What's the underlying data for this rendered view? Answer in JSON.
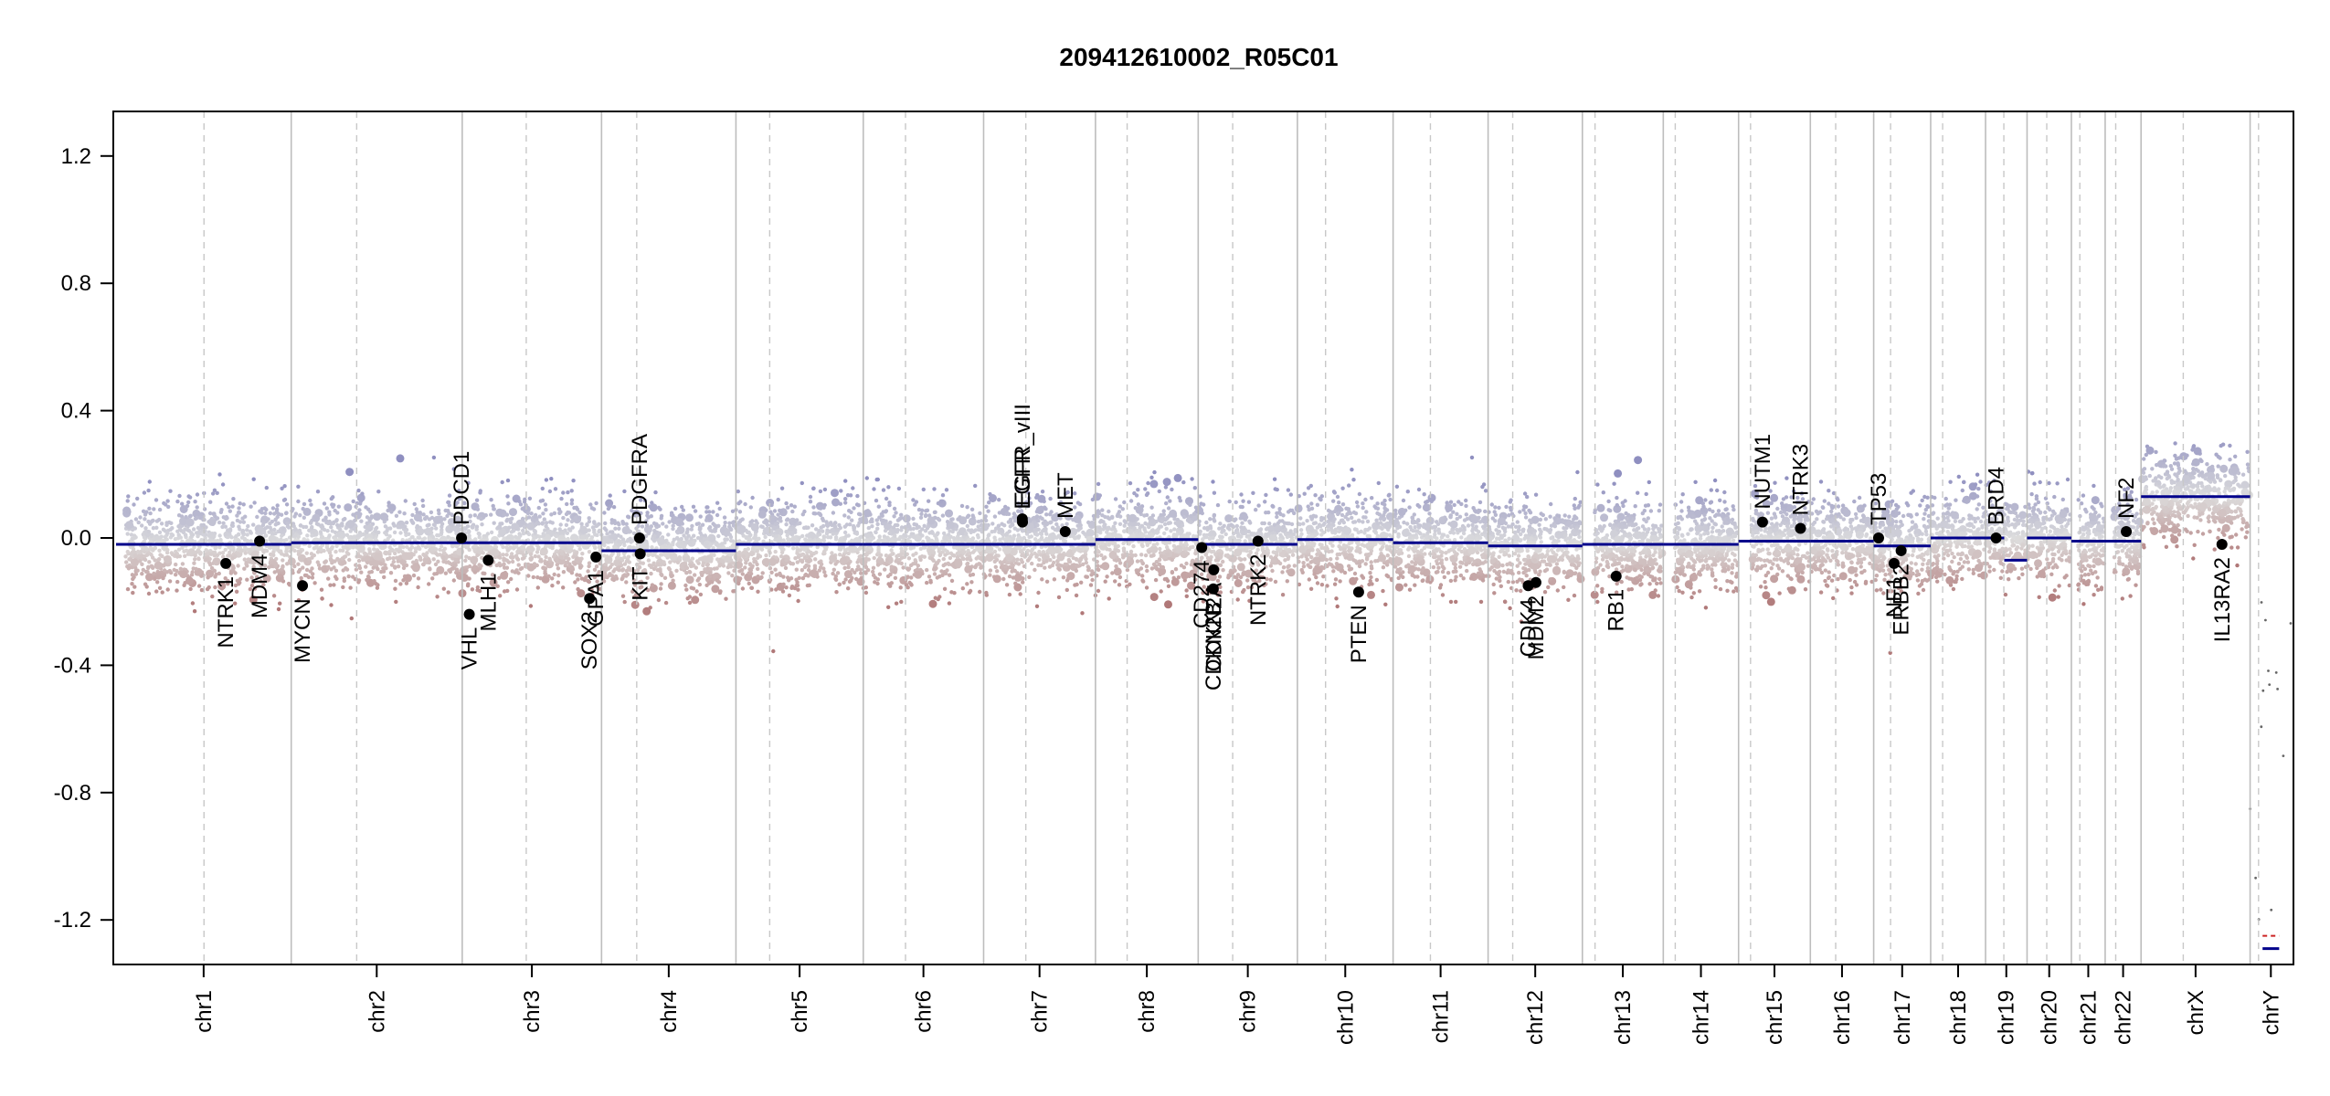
{
  "chart_data": {
    "type": "scatter",
    "title": "209412610002_R05C01",
    "xlabel": "",
    "ylabel": "",
    "ylim": [
      -1.34,
      1.34
    ],
    "yticks": [
      -1.2,
      -0.8,
      -0.4,
      0.0,
      0.4,
      0.8,
      1.2
    ],
    "ytick_labels": [
      "-1.2",
      "-0.8",
      "-0.4",
      "0.0",
      "0.4",
      "0.8",
      "1.2"
    ],
    "grid": false,
    "colors": {
      "gain": "#8f8fc0",
      "neutral": "#d9d9d9",
      "loss": "#b07878",
      "segment": "#00008b",
      "segment_y_outlier": "#cc2222"
    },
    "chromosomes": [
      {
        "name": "chr1",
        "length": 249,
        "centromere": 125,
        "cov_start": 0.05,
        "segments": [
          {
            "from": 0,
            "to": 1,
            "value": -0.02
          }
        ]
      },
      {
        "name": "chr2",
        "length": 243,
        "centromere": 93,
        "cov_start": 0.0,
        "segments": [
          {
            "from": 0,
            "to": 1,
            "value": -0.015
          }
        ]
      },
      {
        "name": "chr3",
        "length": 198,
        "centromere": 91,
        "cov_start": 0.0,
        "segments": [
          {
            "from": 0,
            "to": 1,
            "value": -0.015
          }
        ]
      },
      {
        "name": "chr4",
        "length": 191,
        "centromere": 50,
        "cov_start": 0.0,
        "segments": [
          {
            "from": 0,
            "to": 1,
            "value": -0.04
          }
        ]
      },
      {
        "name": "chr5",
        "length": 181,
        "centromere": 48,
        "cov_start": 0.0,
        "segments": [
          {
            "from": 0,
            "to": 1,
            "value": -0.02
          }
        ]
      },
      {
        "name": "chr6",
        "length": 171,
        "centromere": 60,
        "cov_start": 0.0,
        "segments": [
          {
            "from": 0,
            "to": 1,
            "value": -0.02
          }
        ]
      },
      {
        "name": "chr7",
        "length": 159,
        "centromere": 60,
        "cov_start": 0.0,
        "segments": [
          {
            "from": 0,
            "to": 1,
            "value": -0.02
          }
        ]
      },
      {
        "name": "chr8",
        "length": 146,
        "centromere": 45,
        "cov_start": 0.0,
        "segments": [
          {
            "from": 0,
            "to": 1,
            "value": -0.005
          }
        ]
      },
      {
        "name": "chr9",
        "length": 141,
        "centromere": 49,
        "cov_start": 0.0,
        "segments": [
          {
            "from": 0,
            "to": 1,
            "value": -0.02
          }
        ]
      },
      {
        "name": "chr10",
        "length": 136,
        "centromere": 40,
        "cov_start": 0.0,
        "segments": [
          {
            "from": 0,
            "to": 1,
            "value": -0.005
          }
        ]
      },
      {
        "name": "chr11",
        "length": 135,
        "centromere": 53,
        "cov_start": 0.0,
        "segments": [
          {
            "from": 0,
            "to": 1,
            "value": -0.015
          }
        ]
      },
      {
        "name": "chr12",
        "length": 134,
        "centromere": 35,
        "cov_start": 0.0,
        "segments": [
          {
            "from": 0,
            "to": 1,
            "value": -0.025
          }
        ]
      },
      {
        "name": "chr13",
        "length": 115,
        "centromere": 18,
        "cov_start": 0.15,
        "segments": [
          {
            "from": 0,
            "to": 1,
            "value": -0.02
          }
        ]
      },
      {
        "name": "chr14",
        "length": 107,
        "centromere": 17,
        "cov_start": 0.15,
        "segments": [
          {
            "from": 0,
            "to": 1,
            "value": -0.02
          }
        ]
      },
      {
        "name": "chr15",
        "length": 102,
        "centromere": 17,
        "cov_start": 0.18,
        "segments": [
          {
            "from": 0,
            "to": 1,
            "value": -0.01
          }
        ]
      },
      {
        "name": "chr16",
        "length": 90,
        "centromere": 36,
        "cov_start": 0.0,
        "segments": [
          {
            "from": 0,
            "to": 1,
            "value": -0.01
          }
        ]
      },
      {
        "name": "chr17",
        "length": 81,
        "centromere": 24,
        "cov_start": 0.0,
        "segments": [
          {
            "from": 0,
            "to": 1,
            "value": -0.025
          }
        ]
      },
      {
        "name": "chr18",
        "length": 78,
        "centromere": 17,
        "cov_start": 0.0,
        "segments": [
          {
            "from": 0,
            "to": 1,
            "value": 0.0
          }
        ]
      },
      {
        "name": "chr19",
        "length": 59,
        "centromere": 26,
        "cov_start": 0.0,
        "segments": [
          {
            "from": 0,
            "to": 0.45,
            "value": 0.0
          },
          {
            "from": 0.45,
            "to": 1,
            "value": -0.07
          }
        ]
      },
      {
        "name": "chr20",
        "length": 63,
        "centromere": 28,
        "cov_start": 0.0,
        "segments": [
          {
            "from": 0,
            "to": 1,
            "value": 0.0
          }
        ]
      },
      {
        "name": "chr21",
        "length": 48,
        "centromere": 12,
        "cov_start": 0.2,
        "segments": [
          {
            "from": 0,
            "to": 1,
            "value": -0.01
          }
        ]
      },
      {
        "name": "chr22",
        "length": 51,
        "centromere": 15,
        "cov_start": 0.25,
        "segments": [
          {
            "from": 0,
            "to": 1,
            "value": -0.01
          }
        ]
      },
      {
        "name": "chrX",
        "length": 155,
        "centromere": 60,
        "cov_start": 0.0,
        "segments": [
          {
            "from": 0,
            "to": 1,
            "value": 0.13
          }
        ]
      },
      {
        "name": "chrY",
        "length": 59,
        "centromere": 12,
        "cov_start": 0.0,
        "segments": [
          {
            "from": 0.3,
            "to": 0.7,
            "value": -1.29
          }
        ]
      }
    ],
    "genes": [
      {
        "name": "NTRK1",
        "chr": "chr1",
        "pos": 156,
        "value": -0.08
      },
      {
        "name": "MDM4",
        "chr": "chr1",
        "pos": 204,
        "value": -0.01
      },
      {
        "name": "MYCN",
        "chr": "chr2",
        "pos": 16,
        "value": -0.15
      },
      {
        "name": "PDCD1",
        "chr": "chr2",
        "pos": 242,
        "value": 0.0
      },
      {
        "name": "VHL",
        "chr": "chr3",
        "pos": 10,
        "value": -0.24
      },
      {
        "name": "MLH1",
        "chr": "chr3",
        "pos": 37,
        "value": -0.07
      },
      {
        "name": "SOX2",
        "chr": "chr3",
        "pos": 181,
        "value": -0.19
      },
      {
        "name": "GPA1",
        "chr": "chr3",
        "pos": 190,
        "value": -0.06
      },
      {
        "name": "KIT",
        "chr": "chr4",
        "pos": 55,
        "value": -0.05
      },
      {
        "name": "PDGFRA",
        "chr": "chr4",
        "pos": 54,
        "value": 0.0
      },
      {
        "name": "EGFR_vIII",
        "chr": "chr7",
        "pos": 55,
        "value": 0.06
      },
      {
        "name": "EGFR",
        "chr": "chr7",
        "pos": 55.3,
        "value": 0.05
      },
      {
        "name": "MET",
        "chr": "chr7",
        "pos": 116,
        "value": 0.02
      },
      {
        "name": "CD274",
        "chr": "chr9",
        "pos": 5,
        "value": -0.03
      },
      {
        "name": "CDKN2B",
        "chr": "chr9",
        "pos": 21.5,
        "value": -0.16
      },
      {
        "name": "CDKN2A",
        "chr": "chr9",
        "pos": 22,
        "value": -0.1
      },
      {
        "name": "NTRK2",
        "chr": "chr9",
        "pos": 85,
        "value": -0.01
      },
      {
        "name": "PTEN",
        "chr": "chr10",
        "pos": 87,
        "value": -0.17
      },
      {
        "name": "CDK4",
        "chr": "chr12",
        "pos": 57,
        "value": -0.15
      },
      {
        "name": "MDM2",
        "chr": "chr12",
        "pos": 68,
        "value": -0.14
      },
      {
        "name": "RB1",
        "chr": "chr13",
        "pos": 48,
        "value": -0.12
      },
      {
        "name": "NUTM1",
        "chr": "chr15",
        "pos": 34,
        "value": 0.05
      },
      {
        "name": "NTRK3",
        "chr": "chr15",
        "pos": 88,
        "value": 0.03
      },
      {
        "name": "TP53",
        "chr": "chr17",
        "pos": 7,
        "value": 0.0
      },
      {
        "name": "NF1",
        "chr": "chr17",
        "pos": 29,
        "value": -0.08
      },
      {
        "name": "ERBB2",
        "chr": "chr17",
        "pos": 39,
        "value": -0.04
      },
      {
        "name": "BRD4",
        "chr": "chr19",
        "pos": 15,
        "value": 0.0
      },
      {
        "name": "NF2",
        "chr": "chr22",
        "pos": 30,
        "value": 0.02
      },
      {
        "name": "IL13RA2",
        "chr": "chrX",
        "pos": 115,
        "value": -0.02
      }
    ]
  }
}
